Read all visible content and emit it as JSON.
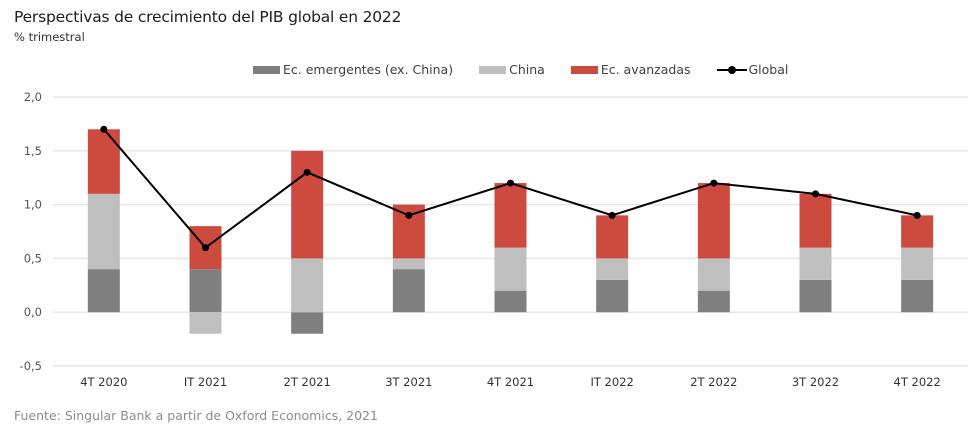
{
  "chart_data": {
    "type": "bar",
    "stacked": true,
    "title": "Perspectivas de crecimiento del PIB global en 2022",
    "subtitle": "% trimestral",
    "xlabel": "",
    "ylabel": "",
    "ylim": [
      -0.5,
      2.0
    ],
    "yticks": [
      2.0,
      1.5,
      1.0,
      0.5,
      0.0,
      -0.5
    ],
    "ytick_labels": [
      "2,0",
      "1,5",
      "1,0",
      "0,5",
      "0,0",
      "-0,5"
    ],
    "grid": true,
    "legend_position": "top-center",
    "categories": [
      "4T 2020",
      "IT 2021",
      "2T 2021",
      "3T 2021",
      "4T 2021",
      "IT 2022",
      "2T 2022",
      "3T 2022",
      "4T 2022"
    ],
    "series": [
      {
        "name": "Ec. emergentes (ex. China)",
        "type": "bar",
        "color": "#7f7f7f",
        "values": [
          0.4,
          0.4,
          -0.2,
          0.4,
          0.2,
          0.3,
          0.2,
          0.3,
          0.3
        ]
      },
      {
        "name": "China",
        "type": "bar",
        "color": "#bfbfbf",
        "values": [
          0.7,
          -0.2,
          0.5,
          0.1,
          0.4,
          0.2,
          0.3,
          0.3,
          0.3
        ]
      },
      {
        "name": "Ec. avanzadas",
        "type": "bar",
        "color": "#cd4b3e",
        "values": [
          0.6,
          0.4,
          1.0,
          0.5,
          0.6,
          0.4,
          0.7,
          0.5,
          0.3
        ]
      },
      {
        "name": "Global",
        "type": "line",
        "color": "#000000",
        "values": [
          1.7,
          0.6,
          1.3,
          0.9,
          1.2,
          0.9,
          1.2,
          1.1,
          0.9
        ]
      }
    ],
    "source": "Fuente: Singular Bank a partir de Oxford Economics, 2021"
  }
}
